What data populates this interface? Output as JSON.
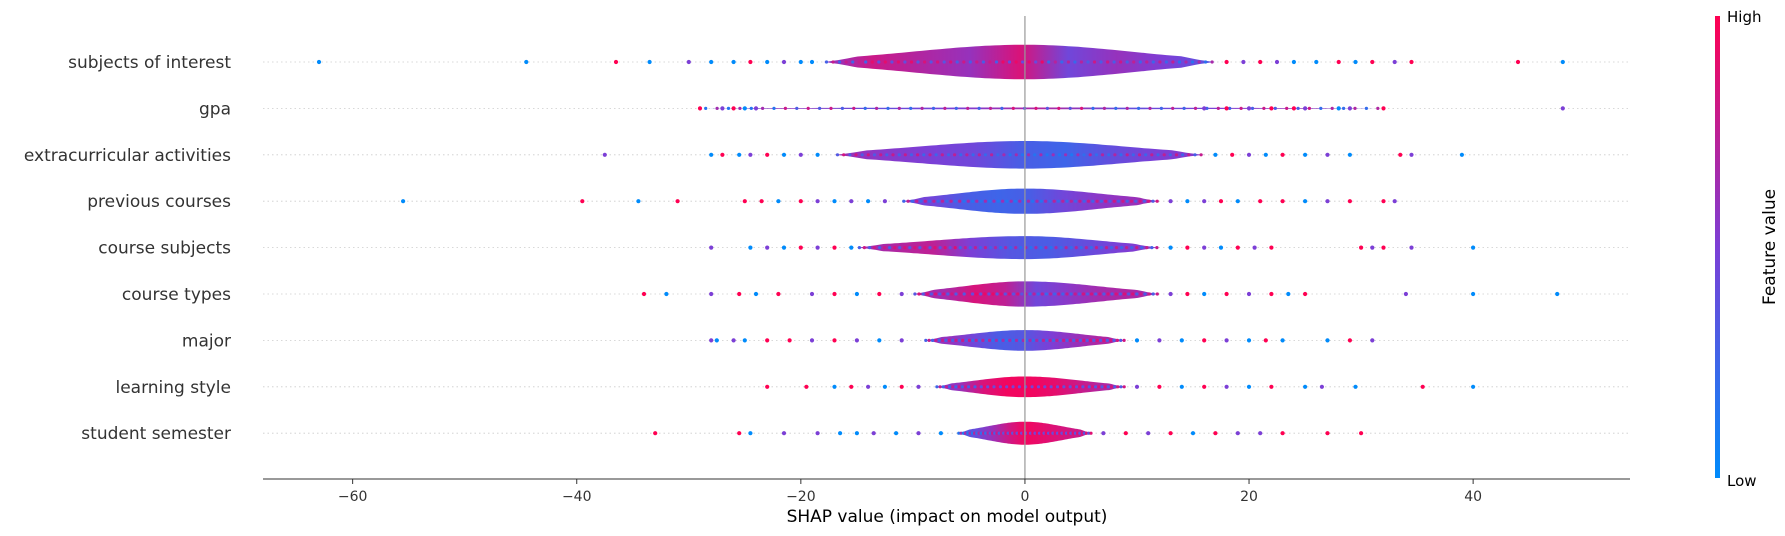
{
  "chart_data": {
    "type": "violin",
    "xlabel": "SHAP value (impact on model output)",
    "xlim": [
      -68,
      54
    ],
    "xticks": [
      -60,
      -40,
      -20,
      0,
      20,
      40
    ],
    "tick_labels": [
      "−60",
      "−40",
      "−20",
      "0",
      "20",
      "40"
    ],
    "colorbar": {
      "title": "Feature value",
      "high_label": "High",
      "low_label": "Low",
      "low_color": "#008bfb",
      "high_color": "#ff0052"
    },
    "features": [
      {
        "name": "subjects of interest",
        "violin_range": [
          -18,
          17
        ],
        "max_halfwidth": 0.75,
        "outliers_low": {
          "x": [
            -63,
            -44.5,
            -36.5,
            -33.5,
            -30,
            -28,
            -26,
            -24.5,
            -23,
            -21.5,
            -20,
            -19
          ],
          "c": [
            0.0,
            0.0,
            1.0,
            0.0,
            0.5,
            0.0,
            0.0,
            1.0,
            0.0,
            0.5,
            0.0,
            0.0
          ]
        },
        "outliers_high": {
          "x": [
            18,
            19.5,
            21,
            22.5,
            24,
            26,
            28,
            29.5,
            31,
            33,
            34.5,
            44,
            48
          ],
          "c": [
            1.0,
            0.5,
            1.0,
            0.5,
            0.0,
            0.0,
            1.0,
            0.0,
            1.0,
            0.5,
            1.0,
            1.0,
            0.0
          ]
        },
        "colors": [
          0.55,
          0.8,
          0.7,
          0.6,
          0.85,
          0.45,
          0.6,
          0.5,
          0.35
        ]
      },
      {
        "name": "gpa",
        "violin_range": [
          -29,
          32
        ],
        "max_halfwidth": 0.04,
        "outliers_low": {
          "x": [
            -29,
            -27,
            -26,
            -25,
            -24
          ],
          "c": [
            1.0,
            0.5,
            1.0,
            0.0,
            0.5
          ]
        },
        "outliers_high": {
          "x": [
            16,
            18,
            20,
            22,
            24,
            25,
            28,
            29,
            32,
            48
          ],
          "c": [
            0.5,
            1.0,
            0.5,
            1.0,
            1.0,
            0.5,
            0.0,
            0.5,
            1.0,
            0.5
          ]
        },
        "colors": [
          0.3,
          0.6,
          0.4,
          0.5,
          0.7,
          0.4,
          0.5,
          0.6,
          0.4
        ]
      },
      {
        "name": "extracurricular activities",
        "violin_range": [
          -17,
          16
        ],
        "max_halfwidth": 0.6,
        "outliers_low": {
          "x": [
            -37.5,
            -28,
            -27,
            -25.5,
            -24.5,
            -23,
            -21.5,
            -20,
            -18.5
          ],
          "c": [
            0.5,
            0.0,
            1.0,
            0.0,
            0.5,
            1.0,
            0.0,
            0.5,
            0.0
          ]
        },
        "outliers_high": {
          "x": [
            17,
            18.5,
            20,
            21.5,
            23,
            25,
            27,
            29,
            33.5,
            34.5,
            39
          ],
          "c": [
            0.0,
            1.0,
            0.5,
            0.0,
            1.0,
            0.0,
            0.5,
            0.0,
            1.0,
            0.5,
            0.0
          ]
        },
        "colors": [
          0.65,
          0.55,
          0.5,
          0.45,
          0.3,
          0.25,
          0.4,
          0.5,
          0.55
        ]
      },
      {
        "name": "previous courses",
        "violin_range": [
          -11,
          12
        ],
        "max_halfwidth": 0.55,
        "outliers_low": {
          "x": [
            -55.5,
            -39.5,
            -34.5,
            -31,
            -25,
            -23.5,
            -22,
            -20,
            -18.5,
            -17,
            -15.5,
            -14,
            -12.5
          ],
          "c": [
            0.0,
            1.0,
            0.0,
            1.0,
            1.0,
            1.0,
            0.0,
            1.0,
            0.5,
            0.0,
            0.5,
            0.0,
            0.5
          ]
        },
        "outliers_high": {
          "x": [
            13,
            14.5,
            16,
            17.5,
            19,
            21,
            23,
            25,
            27,
            29,
            32,
            33
          ],
          "c": [
            0.5,
            0.0,
            0.5,
            1.0,
            0.0,
            1.0,
            1.0,
            0.0,
            0.5,
            1.0,
            1.0,
            0.5
          ]
        },
        "colors": [
          0.5,
          0.45,
          0.3,
          0.25,
          0.3,
          0.45,
          0.55,
          0.6,
          0.65
        ]
      },
      {
        "name": "course subjects",
        "violin_range": [
          -15,
          12
        ],
        "max_halfwidth": 0.5,
        "outliers_low": {
          "x": [
            -28,
            -24.5,
            -23,
            -21.5,
            -20,
            -18.5,
            -17,
            -15.5
          ],
          "c": [
            0.5,
            0.0,
            0.5,
            0.0,
            1.0,
            0.5,
            1.0,
            0.0
          ]
        },
        "outliers_high": {
          "x": [
            13,
            14.5,
            16,
            17.5,
            19,
            20.5,
            22,
            30,
            31,
            32,
            34.5,
            40
          ],
          "c": [
            0.0,
            1.0,
            0.5,
            0.0,
            1.0,
            0.5,
            1.0,
            1.0,
            0.5,
            1.0,
            0.5,
            0.0
          ]
        },
        "colors": [
          0.6,
          0.7,
          0.75,
          0.5,
          0.35,
          0.3,
          0.4,
          0.5,
          0.55
        ]
      },
      {
        "name": "course types",
        "violin_range": [
          -10,
          12
        ],
        "max_halfwidth": 0.55,
        "outliers_low": {
          "x": [
            -34,
            -32,
            -28,
            -25.5,
            -24,
            -22,
            -19,
            -17,
            -15,
            -13,
            -11
          ],
          "c": [
            1.0,
            0.0,
            0.5,
            1.0,
            0.0,
            1.0,
            0.5,
            1.0,
            0.0,
            1.0,
            0.5
          ]
        },
        "outliers_high": {
          "x": [
            13,
            14.5,
            16,
            18,
            20,
            22,
            23.5,
            25,
            34,
            40,
            47.5
          ],
          "c": [
            0.5,
            1.0,
            0.0,
            1.0,
            0.5,
            1.0,
            0.0,
            1.0,
            0.5,
            0.0,
            0.0
          ]
        },
        "colors": [
          0.7,
          0.65,
          0.85,
          0.75,
          0.45,
          0.55,
          0.65,
          0.7,
          0.6
        ]
      },
      {
        "name": "major",
        "violin_range": [
          -9,
          9
        ],
        "max_halfwidth": 0.45,
        "outliers_low": {
          "x": [
            -28,
            -27.5,
            -26,
            -25,
            -23,
            -21,
            -19,
            -17,
            -15,
            -13,
            -11
          ],
          "c": [
            0.5,
            0.0,
            0.5,
            0.0,
            1.0,
            1.0,
            0.5,
            1.0,
            0.5,
            0.0,
            0.5
          ]
        },
        "outliers_high": {
          "x": [
            10,
            12,
            14,
            16,
            18,
            20,
            21.5,
            23,
            27,
            29,
            31
          ],
          "c": [
            0.0,
            0.5,
            0.0,
            1.0,
            0.5,
            0.0,
            1.0,
            0.0,
            0.0,
            1.0,
            0.5
          ]
        },
        "colors": [
          0.55,
          0.6,
          0.45,
          0.3,
          0.35,
          0.5,
          0.6,
          0.7,
          0.65
        ]
      },
      {
        "name": "learning style",
        "violin_range": [
          -8,
          9
        ],
        "max_halfwidth": 0.45,
        "outliers_low": {
          "x": [
            -23,
            -19.5,
            -17,
            -15.5,
            -14,
            -12.5,
            -11,
            -9.5
          ],
          "c": [
            1.0,
            1.0,
            0.0,
            1.0,
            0.5,
            0.0,
            1.0,
            0.5
          ]
        },
        "outliers_high": {
          "x": [
            10,
            12,
            14,
            16,
            18,
            20,
            22,
            25,
            26.5,
            29.5,
            35.5,
            40
          ],
          "c": [
            0.5,
            1.0,
            0.0,
            1.0,
            0.5,
            0.0,
            1.0,
            0.0,
            0.5,
            0.0,
            1.0,
            0.0
          ]
        },
        "colors": [
          0.5,
          0.6,
          0.85,
          0.95,
          0.95,
          0.9,
          0.8,
          0.7,
          0.65
        ]
      },
      {
        "name": "student semester",
        "violin_range": [
          -6,
          6
        ],
        "max_halfwidth": 0.5,
        "outliers_low": {
          "x": [
            -33,
            -25.5,
            -24.5,
            -21.5,
            -18.5,
            -16.5,
            -15,
            -13.5,
            -11.5,
            -9.5,
            -7.5
          ],
          "c": [
            1.0,
            1.0,
            0.0,
            0.5,
            0.5,
            0.0,
            0.0,
            0.5,
            0.0,
            0.5,
            0.0
          ]
        },
        "outliers_high": {
          "x": [
            7,
            9,
            11,
            13,
            15,
            17,
            19,
            21,
            23,
            27,
            30
          ],
          "c": [
            0.5,
            1.0,
            0.5,
            1.0,
            0.0,
            1.0,
            0.5,
            0.5,
            1.0,
            1.0,
            1.0
          ]
        },
        "colors": [
          0.3,
          0.4,
          0.6,
          0.8,
          0.95,
          0.9,
          0.85,
          0.8,
          0.75
        ]
      }
    ]
  }
}
